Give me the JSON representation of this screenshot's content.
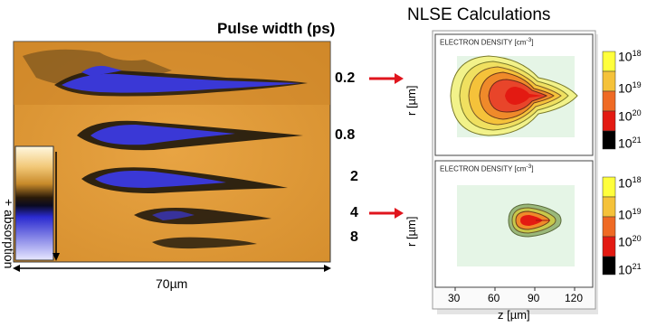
{
  "left_panel": {
    "title": "Pulse width (ps)",
    "pulse_widths": [
      "0.2",
      "0.8",
      "2",
      "4",
      "8"
    ],
    "colorbar_label": "+ absorption",
    "scale_bar_label": "70µm"
  },
  "right_panel": {
    "title": "NLSE Calculations",
    "plots": [
      {
        "label": "ELECTRON DENSITY [cm",
        "label_exp": "-3",
        "label_close": "]"
      },
      {
        "label": "ELECTRON DENSITY [cm",
        "label_exp": "-3",
        "label_close": "]"
      }
    ],
    "y_axis_label": "r [µm]",
    "x_axis_label": "z [µm]",
    "x_ticks": [
      "30",
      "60",
      "90",
      "120"
    ],
    "colorbar": {
      "base": "10",
      "exponents": [
        "18",
        "19",
        "20",
        "21"
      ],
      "colors": [
        "#ffff3c",
        "#f5c23a",
        "#ef6a24",
        "#e31a12",
        "#000000"
      ]
    }
  },
  "arrows": [
    {
      "from_pulse": "0.2",
      "to_plot": 1,
      "color": "#e0151d"
    },
    {
      "from_pulse": "4",
      "to_plot": 2,
      "color": "#e0151d"
    }
  ],
  "colors": {
    "background_orange": "#e09a3a",
    "absorption_dark": "#1a1204",
    "absorption_blue": "#3a3ad8"
  }
}
